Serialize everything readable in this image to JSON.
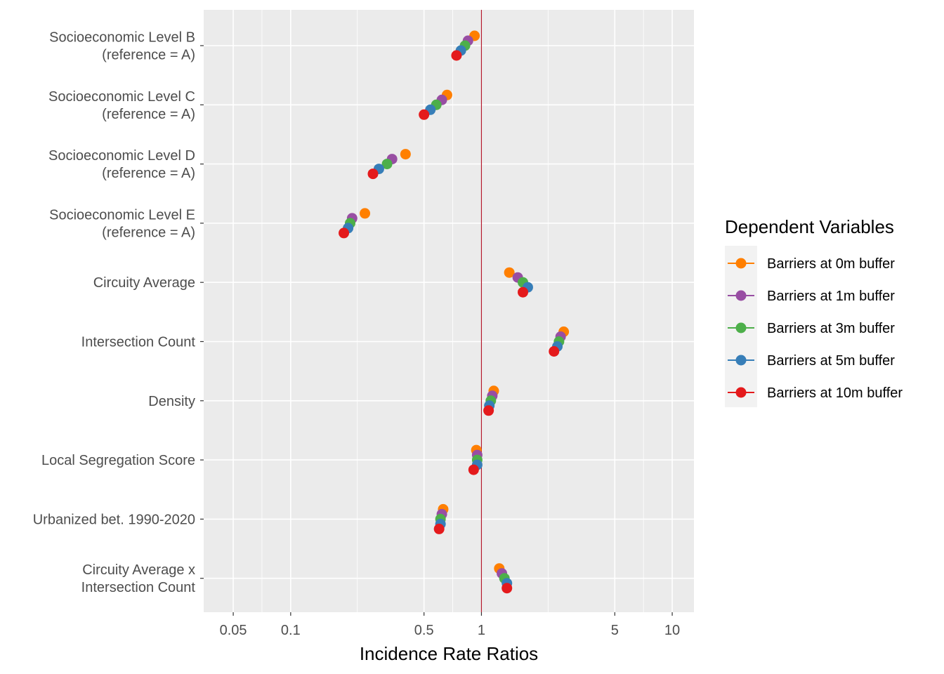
{
  "chart_data": {
    "type": "scatter",
    "title": "",
    "xlabel": "Incidence Rate Ratios",
    "ylabel": "",
    "x_scale": "log",
    "xlim": [
      0.035,
      13
    ],
    "x_ticks": [
      {
        "value": 0.05,
        "label": "0.05"
      },
      {
        "value": 0.1,
        "label": "0.1"
      },
      {
        "value": 0.5,
        "label": "0.5"
      },
      {
        "value": 1,
        "label": "1"
      },
      {
        "value": 5,
        "label": "5"
      },
      {
        "value": 10,
        "label": "10"
      }
    ],
    "reference_line": {
      "value": 1,
      "color": "#b2182b"
    },
    "grid": true,
    "legend_position": "right",
    "legend_title": "Dependent Variables",
    "categories": [
      {
        "lines": [
          "Socioeconomic Level B",
          "(reference = A)"
        ]
      },
      {
        "lines": [
          "Socioeconomic Level C",
          "(reference = A)"
        ]
      },
      {
        "lines": [
          "Socioeconomic Level D",
          "(reference = A)"
        ]
      },
      {
        "lines": [
          "Socioeconomic Level E",
          "(reference = A)"
        ]
      },
      {
        "lines": [
          "Circuity Average"
        ]
      },
      {
        "lines": [
          "Intersection Count"
        ]
      },
      {
        "lines": [
          "Density"
        ]
      },
      {
        "lines": [
          "Local Segregation Score"
        ]
      },
      {
        "lines": [
          "Urbanized bet. 1990-2020"
        ]
      },
      {
        "lines": [
          "Circuity Average x",
          "Intersection Count"
        ]
      }
    ],
    "series": [
      {
        "name": "Barriers at 0m buffer",
        "color": "#ff7f00",
        "values": [
          0.92,
          0.66,
          0.4,
          0.245,
          1.4,
          2.7,
          1.16,
          0.94,
          0.63,
          1.24
        ]
      },
      {
        "name": "Barriers at 1m buffer",
        "color": "#984ea3",
        "values": [
          0.85,
          0.62,
          0.34,
          0.21,
          1.55,
          2.6,
          1.14,
          0.95,
          0.62,
          1.28
        ]
      },
      {
        "name": "Barriers at 3m buffer",
        "color": "#4daf4a",
        "values": [
          0.82,
          0.58,
          0.32,
          0.205,
          1.65,
          2.55,
          1.12,
          0.95,
          0.61,
          1.32
        ]
      },
      {
        "name": "Barriers at 5m buffer",
        "color": "#377eb8",
        "values": [
          0.78,
          0.54,
          0.29,
          0.2,
          1.75,
          2.5,
          1.1,
          0.95,
          0.61,
          1.36
        ]
      },
      {
        "name": "Barriers at 10m buffer",
        "color": "#e41a1c",
        "values": [
          0.74,
          0.5,
          0.27,
          0.19,
          1.65,
          2.4,
          1.09,
          0.91,
          0.6,
          1.36
        ]
      }
    ]
  }
}
